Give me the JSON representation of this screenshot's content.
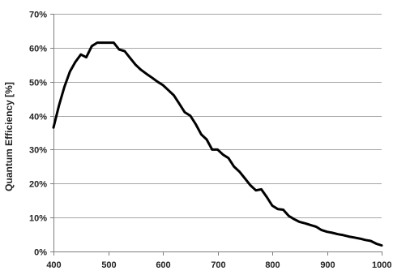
{
  "chart_data": {
    "type": "line",
    "title": "",
    "xlabel": "",
    "ylabel": "Quantum Efficiency [%]",
    "xlim": [
      400,
      1000
    ],
    "ylim": [
      0,
      70
    ],
    "grid": {
      "horizontal": true,
      "vertical": false
    },
    "legend": "none",
    "x_ticks": [
      {
        "value": 400,
        "label": "400"
      },
      {
        "value": 500,
        "label": "500"
      },
      {
        "value": 600,
        "label": "600"
      },
      {
        "value": 700,
        "label": "700"
      },
      {
        "value": 800,
        "label": "800"
      },
      {
        "value": 900,
        "label": "900"
      },
      {
        "value": 1000,
        "label": "1000"
      }
    ],
    "y_ticks": [
      {
        "value": 0,
        "label": "0%"
      },
      {
        "value": 10,
        "label": "10%"
      },
      {
        "value": 20,
        "label": "20%"
      },
      {
        "value": 30,
        "label": "30%"
      },
      {
        "value": 40,
        "label": "40%"
      },
      {
        "value": 50,
        "label": "50%"
      },
      {
        "value": 60,
        "label": "60%"
      },
      {
        "value": 70,
        "label": "70%"
      }
    ],
    "series": [
      {
        "color": "#000000",
        "x": [
          400,
          410,
          420,
          430,
          440,
          450,
          460,
          470,
          480,
          490,
          500,
          510,
          520,
          530,
          540,
          550,
          560,
          570,
          580,
          590,
          600,
          610,
          620,
          630,
          640,
          650,
          660,
          670,
          680,
          690,
          700,
          710,
          720,
          730,
          740,
          750,
          760,
          770,
          780,
          790,
          800,
          810,
          820,
          830,
          840,
          850,
          860,
          870,
          880,
          890,
          900,
          910,
          920,
          930,
          940,
          950,
          960,
          970,
          980,
          990,
          1000
        ],
        "y": [
          36.5,
          43,
          48.5,
          53,
          55.8,
          58,
          57.2,
          60.5,
          61.5,
          61.5,
          61.5,
          61.5,
          59.5,
          59,
          57,
          55,
          53.5,
          52.3,
          51.2,
          50,
          49,
          47.5,
          46,
          43.5,
          41,
          40,
          37.5,
          34.5,
          33,
          30,
          30,
          28.5,
          27.5,
          25,
          23.5,
          21.5,
          19.5,
          18,
          18.3,
          16,
          13.5,
          12.5,
          12.3,
          10.5,
          9.5,
          8.7,
          8.3,
          7.8,
          7.3,
          6.3,
          5.8,
          5.5,
          5.1,
          4.8,
          4.4,
          4.1,
          3.8,
          3.4,
          3.1,
          2.3,
          1.8
        ]
      }
    ]
  }
}
